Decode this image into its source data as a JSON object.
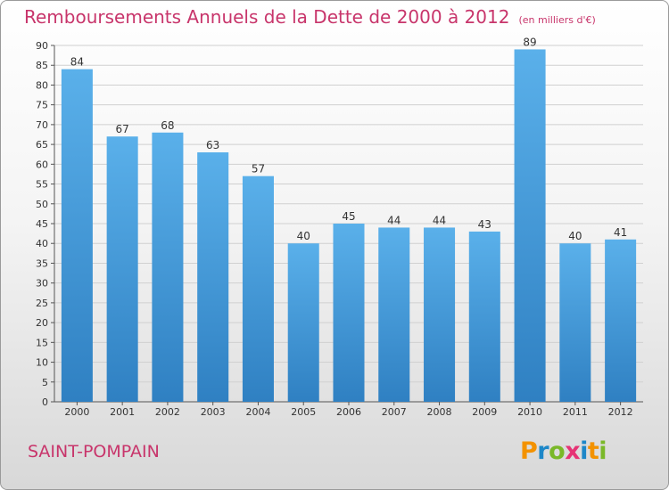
{
  "title": "Remboursements Annuels de la Dette de 2000 à 2012",
  "unit": "(en milliers d'€)",
  "commune": "SAINT-POMPAIN",
  "logo": {
    "letters": [
      "P",
      "r",
      "o",
      "x",
      "i",
      "t",
      "i"
    ],
    "colors": [
      "#f39200",
      "#1d87c8",
      "#7ab828",
      "#e63375",
      "#1d87c8",
      "#f39200",
      "#7ab828"
    ]
  },
  "colors": {
    "bar_light": "#5ab0ea",
    "bar_dark": "#2f80c2",
    "title": "#c8356b"
  },
  "chart_data": {
    "type": "bar",
    "categories": [
      "2000",
      "2001",
      "2002",
      "2003",
      "2004",
      "2005",
      "2006",
      "2007",
      "2008",
      "2009",
      "2010",
      "2011",
      "2012"
    ],
    "values": [
      84,
      67,
      68,
      63,
      57,
      40,
      45,
      44,
      44,
      43,
      89,
      40,
      41
    ],
    "ylim": [
      0,
      90
    ],
    "yticks": [
      0,
      5,
      10,
      15,
      20,
      25,
      30,
      35,
      40,
      45,
      50,
      55,
      60,
      65,
      70,
      75,
      80,
      85,
      90
    ],
    "grid": true
  }
}
